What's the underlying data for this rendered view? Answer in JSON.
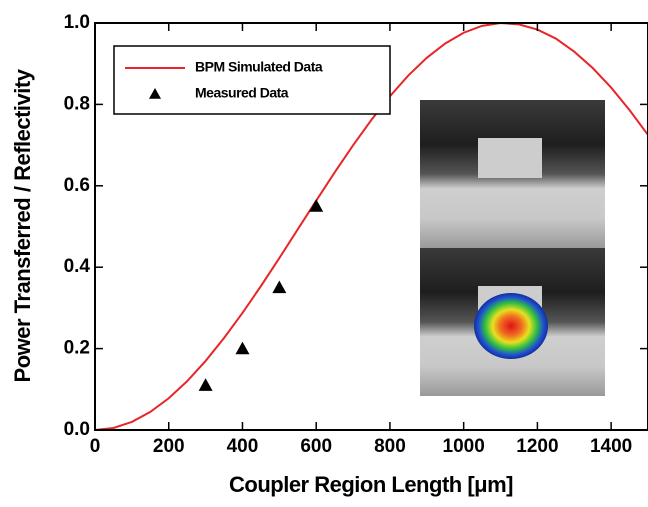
{
  "chart_data": {
    "type": "line",
    "xlabel": "Coupler Region Length [μm]",
    "ylabel": "Power Transferred / Reflectivity",
    "xlim": [
      0,
      1500
    ],
    "ylim": [
      0,
      1
    ],
    "xticks": [
      0,
      200,
      400,
      600,
      800,
      1000,
      1200,
      1400
    ],
    "yticks": [
      {
        "value": 0,
        "label": "0.0"
      },
      0.2,
      0.4,
      0.6,
      0.8,
      {
        "value": 1,
        "label": "1.0"
      }
    ],
    "legend": "upper left",
    "series": [
      {
        "name": "BPM Simulated Data",
        "type": "line",
        "color": "#e8262a",
        "x": [
          0,
          50,
          100,
          150,
          200,
          250,
          300,
          350,
          400,
          450,
          500,
          550,
          600,
          650,
          700,
          750,
          800,
          850,
          900,
          950,
          1000,
          1050,
          1100,
          1150,
          1200,
          1250,
          1300,
          1350,
          1400,
          1450,
          1500
        ],
        "values": [
          0,
          0.005,
          0.0199,
          0.0444,
          0.078,
          0.12,
          0.1697,
          0.226,
          0.2876,
          0.3535,
          0.4224,
          0.493,
          0.5634,
          0.6328,
          0.6996,
          0.7623,
          0.82,
          0.8711,
          0.9145,
          0.9497,
          0.9761,
          0.993,
          1.0,
          0.9966,
          0.9839,
          0.9618,
          0.9295,
          0.8894,
          0.8413,
          0.7859,
          0.7249
        ]
      },
      {
        "name": "Measured Data",
        "type": "scatter",
        "color": "#000000",
        "x": [
          300,
          400,
          500,
          600
        ],
        "values": [
          0.11,
          0.2,
          0.35,
          0.55
        ]
      }
    ]
  }
}
